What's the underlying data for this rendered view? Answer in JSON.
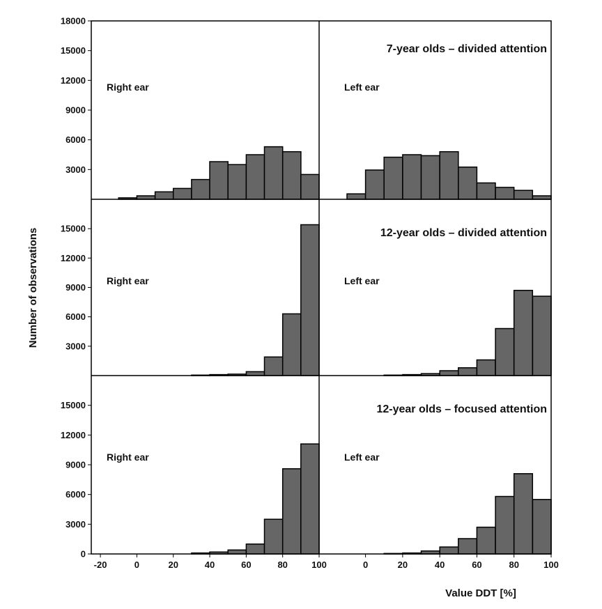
{
  "chart_data": {
    "type": "bar",
    "x_axis_label": "Value DDT [%]",
    "y_axis_label": "Number of observations",
    "bin_width": 10,
    "panels": [
      {
        "row": 0,
        "col": 0,
        "title": "",
        "ear_label": "Right ear",
        "y_ticks": [
          "18000",
          "15000",
          "12000",
          "9000",
          "6000",
          "3000"
        ],
        "ylim": [
          0,
          18000
        ],
        "bins": [
          -10,
          0,
          10,
          20,
          30,
          40,
          50,
          60,
          70,
          80,
          90
        ],
        "values": [
          150,
          350,
          750,
          1100,
          2000,
          3800,
          3500,
          4500,
          5300,
          4800,
          2500
        ]
      },
      {
        "row": 0,
        "col": 1,
        "title": "7-year olds – divided attention",
        "ear_label": "Left ear",
        "bins": [
          -10,
          0,
          10,
          20,
          30,
          40,
          50,
          60,
          70,
          80,
          90
        ],
        "values": [
          550,
          2950,
          4250,
          4500,
          4400,
          4800,
          3250,
          1650,
          1200,
          900,
          350
        ]
      },
      {
        "row": 1,
        "col": 0,
        "title": "",
        "ear_label": "Right ear",
        "y_ticks": [
          "15000",
          "12000",
          "9000",
          "6000",
          "3000"
        ],
        "ylim": [
          0,
          18000
        ],
        "bins": [
          30,
          40,
          50,
          60,
          70,
          80,
          90
        ],
        "values": [
          50,
          100,
          150,
          400,
          1900,
          6300,
          15400
        ]
      },
      {
        "row": 1,
        "col": 1,
        "title": "12-year olds – divided attention",
        "ear_label": "Left ear",
        "bins": [
          10,
          20,
          30,
          40,
          50,
          60,
          70,
          80,
          90
        ],
        "values": [
          50,
          100,
          200,
          500,
          800,
          1600,
          4800,
          8700,
          8100
        ]
      },
      {
        "row": 2,
        "col": 0,
        "title": "",
        "ear_label": "Right ear",
        "y_ticks": [
          "15000",
          "12000",
          "9000",
          "6000",
          "3000",
          "0"
        ],
        "ylim": [
          0,
          18000
        ],
        "bins": [
          30,
          40,
          50,
          60,
          70,
          80,
          90
        ],
        "values": [
          100,
          200,
          400,
          1000,
          3500,
          8600,
          11100
        ]
      },
      {
        "row": 2,
        "col": 1,
        "title": "12-year olds – focused attention",
        "ear_label": "Left ear",
        "bins": [
          10,
          20,
          30,
          40,
          50,
          60,
          70,
          80,
          90
        ],
        "values": [
          50,
          100,
          300,
          700,
          1550,
          2700,
          5800,
          8100,
          5500
        ]
      }
    ],
    "x_ticks_left": [
      "-20",
      "0",
      "20",
      "40",
      "60",
      "80",
      "100"
    ],
    "x_ticks_right": [
      "0",
      "20",
      "40",
      "60",
      "80",
      "100"
    ],
    "xlim_left": [
      -25,
      100
    ],
    "xlim_right": [
      -25,
      100
    ],
    "bar_color": "#666666",
    "bar_edge_color": "#000000"
  }
}
